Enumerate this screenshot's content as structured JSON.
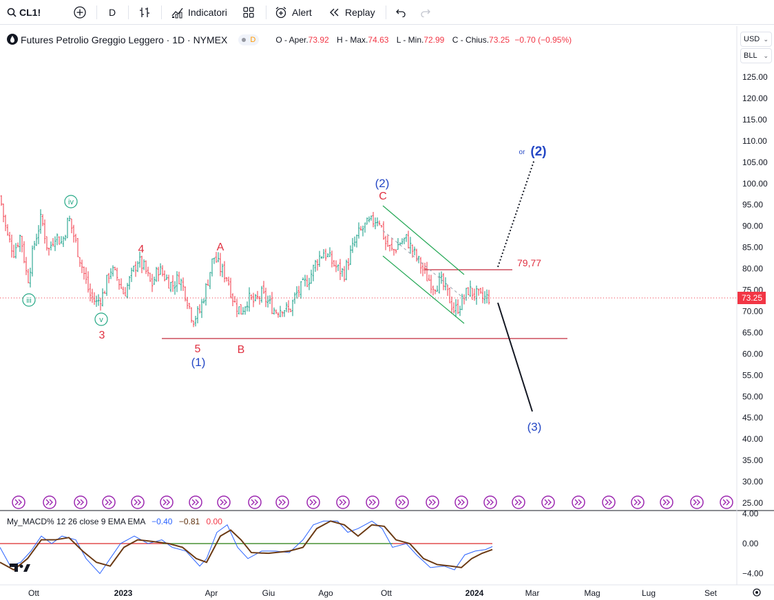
{
  "toolbar": {
    "symbol": "CL1!",
    "interval": "D",
    "indicators_label": "Indicatori",
    "alert_label": "Alert",
    "replay_label": "Replay"
  },
  "legend": {
    "title": "Futures Petrolio Greggio Leggero · 1D · NYMEX",
    "badge": "D",
    "open_label": "O - Aper.",
    "open": "73.92",
    "high_label": "H - Max.",
    "high": "74.63",
    "low_label": "L - Min.",
    "low": "72.99",
    "close_label": "C - Chius.",
    "close": "73.25",
    "change": "−0.70 (−0.95%)"
  },
  "price_scale": {
    "currency": "USD",
    "unit": "BLL",
    "ticks": [
      "125.00",
      "120.00",
      "115.00",
      "110.00",
      "105.00",
      "100.00",
      "95.00",
      "90.00",
      "85.00",
      "80.00",
      "75.00",
      "70.00",
      "65.00",
      "60.00",
      "55.00",
      "50.00",
      "45.00",
      "40.00",
      "35.00",
      "30.00",
      "25.00"
    ],
    "last_price": "73.25"
  },
  "macd": {
    "title": "My_MACD% 12 26 close 9 EMA EMA",
    "macd_value": "−0.40",
    "signal_value": "−0.81",
    "hist_value": "0.00",
    "ticks": [
      "4.00",
      "0.00",
      "−4.00"
    ]
  },
  "time_axis": [
    "Ott",
    "2023",
    "Apr",
    "Giu",
    "Ago",
    "Ott",
    "2024",
    "Mar",
    "Mag",
    "Lug",
    "Set"
  ],
  "annotations": {
    "iii": "iii",
    "iv": "iv",
    "v": "v",
    "w3": "3",
    "w4": "4",
    "w5": "5",
    "wA": "A",
    "wB": "B",
    "wC": "C",
    "p1": "(1)",
    "p2": "(2)",
    "p3": "(3)",
    "or_label": "or",
    "alt2": "(2)",
    "level": "79,77"
  },
  "colors": {
    "up": "#089981",
    "down": "#f23645",
    "blue_wave": "#2447c5",
    "red_wave": "#e03040",
    "green_wave": "#22a784",
    "macd": "#2962ff",
    "signal": "#6b3a14"
  },
  "chart_data": {
    "type": "candlestick",
    "price_range": [
      25,
      125
    ],
    "close_path": [
      [
        0,
        97
      ],
      [
        10,
        88
      ],
      [
        20,
        84
      ],
      [
        30,
        88
      ],
      [
        40,
        77
      ],
      [
        50,
        86
      ],
      [
        60,
        92
      ],
      [
        70,
        84
      ],
      [
        80,
        88
      ],
      [
        90,
        86
      ],
      [
        100,
        92
      ],
      [
        110,
        86
      ],
      [
        120,
        80
      ],
      [
        130,
        74
      ],
      [
        140,
        72
      ],
      [
        150,
        74
      ],
      [
        160,
        80
      ],
      [
        170,
        78
      ],
      [
        180,
        74
      ],
      [
        190,
        78
      ],
      [
        200,
        82
      ],
      [
        210,
        80
      ],
      [
        220,
        76
      ],
      [
        230,
        80
      ],
      [
        240,
        78
      ],
      [
        250,
        76
      ],
      [
        260,
        78
      ],
      [
        270,
        74
      ],
      [
        280,
        68
      ],
      [
        290,
        70
      ],
      [
        300,
        76
      ],
      [
        310,
        83
      ],
      [
        320,
        80
      ],
      [
        330,
        78
      ],
      [
        340,
        72
      ],
      [
        350,
        70
      ],
      [
        360,
        73
      ],
      [
        370,
        72
      ],
      [
        380,
        74
      ],
      [
        390,
        72
      ],
      [
        400,
        70
      ],
      [
        410,
        71
      ],
      [
        420,
        70
      ],
      [
        430,
        74
      ],
      [
        440,
        76
      ],
      [
        450,
        78
      ],
      [
        460,
        82
      ],
      [
        470,
        84
      ],
      [
        480,
        82
      ],
      [
        490,
        80
      ],
      [
        500,
        79
      ],
      [
        510,
        84
      ],
      [
        520,
        88
      ],
      [
        530,
        90
      ],
      [
        540,
        91
      ],
      [
        550,
        92
      ],
      [
        560,
        86
      ],
      [
        570,
        84
      ],
      [
        580,
        86
      ],
      [
        590,
        87
      ],
      [
        600,
        84
      ],
      [
        610,
        81
      ],
      [
        620,
        78
      ],
      [
        630,
        76
      ],
      [
        640,
        77
      ],
      [
        650,
        74
      ],
      [
        660,
        70
      ],
      [
        670,
        72
      ],
      [
        680,
        75
      ],
      [
        690,
        74
      ],
      [
        700,
        73
      ],
      [
        712,
        73.25
      ]
    ]
  }
}
